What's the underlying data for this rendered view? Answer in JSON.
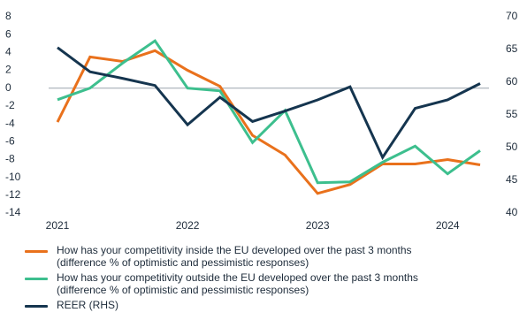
{
  "chart_data": {
    "type": "line",
    "x_tick_labels": [
      "2021",
      "2022",
      "2023",
      "2024"
    ],
    "y_left": {
      "ylim": [
        -14,
        8
      ],
      "ticks": [
        "8",
        "6",
        "4",
        "2",
        "0",
        "-2",
        "-4",
        "-6",
        "-8",
        "-10",
        "-12",
        "-14"
      ]
    },
    "y_right": {
      "ylim": [
        40,
        70
      ],
      "ticks": [
        "70",
        "65",
        "60",
        "55",
        "50",
        "45",
        "40"
      ]
    },
    "x": [
      "2021Q1",
      "2021Q2",
      "2021Q3",
      "2021Q4",
      "2022Q1",
      "2022Q2",
      "2022Q3",
      "2022Q4",
      "2023Q1",
      "2023Q2",
      "2023Q3",
      "2023Q4",
      "2024Q1",
      "2024Q2"
    ],
    "series": [
      {
        "name": "How has your competitivity inside the EU developed over the past 3 months\n(difference % of optimistic and pessimistic responses)",
        "axis": "left",
        "color": "#e9711c",
        "values": [
          -3.8,
          3.5,
          3.0,
          4.2,
          2.0,
          0.2,
          -5.3,
          -7.5,
          -11.8,
          -10.8,
          -8.5,
          -8.5,
          -8.0,
          -8.6
        ]
      },
      {
        "name": "How has your competitivity outside the EU developed over the past 3 months\n(difference % of optimistic and pessimistic responses)",
        "axis": "left",
        "color": "#3dbf8e",
        "values": [
          -1.3,
          0.0,
          2.8,
          5.3,
          0.0,
          -0.3,
          -6.1,
          -2.5,
          -10.6,
          -10.5,
          -8.3,
          -6.5,
          -9.6,
          -7.0
        ]
      },
      {
        "name": "REER (RHS)",
        "axis": "right",
        "color": "#15354f",
        "values": [
          65.3,
          61.6,
          60.6,
          59.5,
          53.5,
          57.7,
          54.0,
          55.6,
          57.3,
          59.3,
          48.5,
          56.0,
          57.3,
          59.8
        ]
      }
    ]
  }
}
